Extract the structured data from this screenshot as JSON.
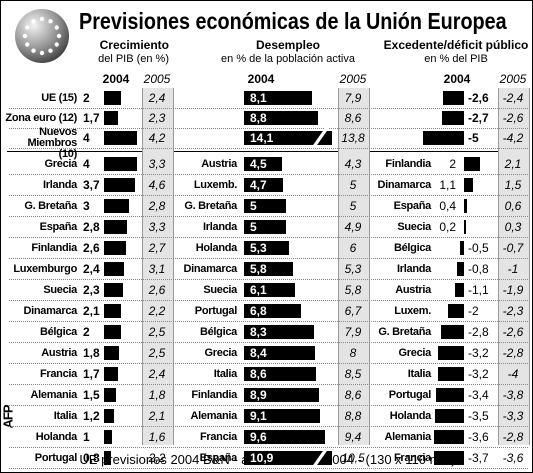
{
  "title": "Previsiones económicas de la Unión Europea",
  "footer": "UE previsiones 2004 B&N - am/zm - 7 abr 2004 - (130 x 110 mm)",
  "credit": "AFP",
  "chart_data": [
    {
      "type": "bar",
      "title": "Crecimiento",
      "subtitle": "del PIB (en %)",
      "categories": [
        "UE (15)",
        "Zona euro (12)",
        "Nuevos Miembros (10)",
        "Grecia",
        "Irlanda",
        "G. Bretaña",
        "España",
        "Finlandia",
        "Luxemburgo",
        "Suecia",
        "Dinamarca",
        "Bélgica",
        "Austria",
        "Francia",
        "Alemania",
        "Italia",
        "Holanda",
        "Portugal"
      ],
      "series": [
        {
          "name": "2004",
          "color": "#000000",
          "values": [
            2,
            1.7,
            4,
            4,
            3.7,
            3,
            2.8,
            2.6,
            2.4,
            2.3,
            2.1,
            2,
            1.8,
            1.7,
            1.5,
            1.2,
            1,
            0.8
          ],
          "value_labels": [
            "2",
            "1,7",
            "4",
            "4",
            "3,7",
            "3",
            "2,8",
            "2,6",
            "2,4",
            "2,3",
            "2,1",
            "2",
            "1,8",
            "1,7",
            "1,5",
            "1,2",
            "1",
            "0,8"
          ]
        },
        {
          "name": "2005",
          "values": [
            2.4,
            2.3,
            4.2,
            3.3,
            4.6,
            2.8,
            3.3,
            2.7,
            3.1,
            2.6,
            2.2,
            2.5,
            2.5,
            2.4,
            1.8,
            2.1,
            1.6,
            2.2
          ],
          "value_labels": [
            "2,4",
            "2,3",
            "4,2",
            "3,3",
            "4,6",
            "2,8",
            "3,3",
            "2,7",
            "3,1",
            "2,6",
            "2,2",
            "2,5",
            "2,5",
            "2,4",
            "1,8",
            "2,1",
            "1,6",
            "2,2"
          ]
        }
      ]
    },
    {
      "type": "bar",
      "title": "Desempleo",
      "subtitle": "en % de la población activa",
      "categories": [
        null,
        null,
        null,
        "Austria",
        "Luxemb.",
        "G. Bretaña",
        "Irlanda",
        "Holanda",
        "Dinamarca",
        "Suecia",
        "Portugal",
        "Bélgica",
        "Grecia",
        "Italia",
        "Finlandia",
        "Alemania",
        "Francia",
        "España"
      ],
      "series": [
        {
          "name": "2004",
          "color": "#000000",
          "values": [
            8.1,
            8.8,
            14.1,
            4.5,
            4.7,
            5,
            5,
            5.3,
            5.8,
            6.1,
            6.8,
            8.3,
            8.4,
            8.6,
            8.9,
            9.1,
            9.6,
            10.9
          ],
          "value_labels": [
            "8,1",
            "8,8",
            "14,1",
            "4,5",
            "4,7",
            "5",
            "5",
            "5,3",
            "5,8",
            "6,1",
            "6,8",
            "8,3",
            "8,4",
            "8,6",
            "8,9",
            "9,1",
            "9,6",
            "10,9"
          ]
        },
        {
          "name": "2005",
          "values": [
            7.9,
            8.6,
            13.8,
            4.3,
            5,
            5,
            4.9,
            6,
            5.3,
            5.8,
            6.7,
            7.9,
            8,
            8.5,
            8.6,
            8.8,
            9.4,
            10.5
          ],
          "value_labels": [
            "7,9",
            "8,6",
            "13,8",
            "4,3",
            "5",
            "5",
            "4,9",
            "6",
            "5,3",
            "5,8",
            "6,7",
            "7,9",
            "8",
            "8,5",
            "8,6",
            "8,8",
            "9,4",
            "10,5"
          ]
        }
      ]
    },
    {
      "type": "bar",
      "title": "Excedente/déficit público",
      "subtitle": "en % del PIB",
      "categories": [
        null,
        null,
        null,
        "Finlandia",
        "Dinamarca",
        "España",
        "Suecia",
        "Bélgica",
        "Irlanda",
        "Austria",
        "Luxem.",
        "G. Bretaña",
        "Grecia",
        "Italia",
        "Portugal",
        "Holanda",
        "Alemania",
        "Francia"
      ],
      "series": [
        {
          "name": "2004",
          "color": "#000000",
          "values": [
            -2.6,
            -2.7,
            -5,
            2,
            1.1,
            0.4,
            0.2,
            -0.5,
            -0.8,
            -1.1,
            -2,
            -2.8,
            -3.2,
            -3.2,
            -3.4,
            -3.5,
            -3.6,
            -3.7
          ],
          "value_labels": [
            "-2,6",
            "-2,7",
            "-5",
            "2",
            "1,1",
            "0,4",
            "0,2",
            "-0,5",
            "-0,8",
            "-1,1",
            "-2",
            "-2,8",
            "-3,2",
            "-3,2",
            "-3,4",
            "-3,5",
            "-3,6",
            "-3,7"
          ]
        },
        {
          "name": "2005",
          "values": [
            -2.4,
            -2.6,
            -4.2,
            2.1,
            1.5,
            0.6,
            0.3,
            -0.7,
            -1,
            -1.9,
            -2.3,
            -2.6,
            -2.8,
            -4,
            -3.8,
            -3.3,
            -2.8,
            -3.6
          ],
          "value_labels": [
            "-2,4",
            "-2,6",
            "-4,2",
            "2,1",
            "1,5",
            "0,6",
            "0,3",
            "-0,7",
            "-1",
            "-1,9",
            "-2,3",
            "-2,6",
            "-2,8",
            "-4",
            "-3,8",
            "-3,3",
            "-2,8",
            "-3,6"
          ]
        }
      ]
    }
  ]
}
